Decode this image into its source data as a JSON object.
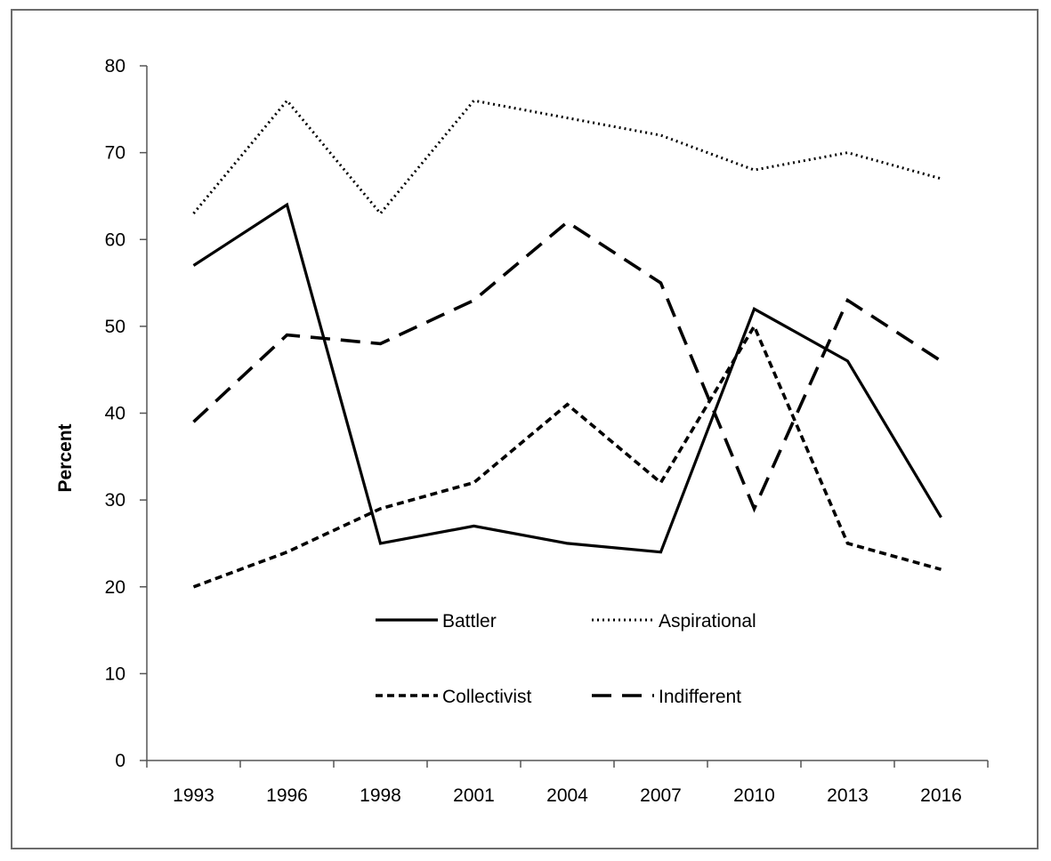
{
  "chart_data": {
    "type": "line",
    "title": "",
    "xlabel": "",
    "ylabel": "Percent",
    "categories": [
      "1993",
      "1996",
      "1998",
      "2001",
      "2004",
      "2007",
      "2010",
      "2013",
      "2016"
    ],
    "ylim": [
      0,
      80
    ],
    "yticks": [
      0,
      10,
      20,
      30,
      40,
      50,
      60,
      70,
      80
    ],
    "grid": false,
    "legend_position": "inside-bottom-center",
    "series": [
      {
        "name": "Battler",
        "style": "solid",
        "color": "#000000",
        "values": [
          57,
          64,
          25,
          27,
          25,
          24,
          52,
          46,
          28
        ]
      },
      {
        "name": "Aspirational",
        "style": "dotted",
        "color": "#000000",
        "values": [
          63,
          76,
          63,
          76,
          74,
          72,
          68,
          70,
          67
        ]
      },
      {
        "name": "Collectivist",
        "style": "short-dash",
        "color": "#000000",
        "values": [
          20,
          24,
          29,
          32,
          41,
          32,
          50,
          25,
          22
        ]
      },
      {
        "name": "Indifferent",
        "style": "long-dash",
        "color": "#000000",
        "values": [
          39,
          49,
          48,
          53,
          62,
          55,
          29,
          53,
          46
        ]
      }
    ]
  }
}
